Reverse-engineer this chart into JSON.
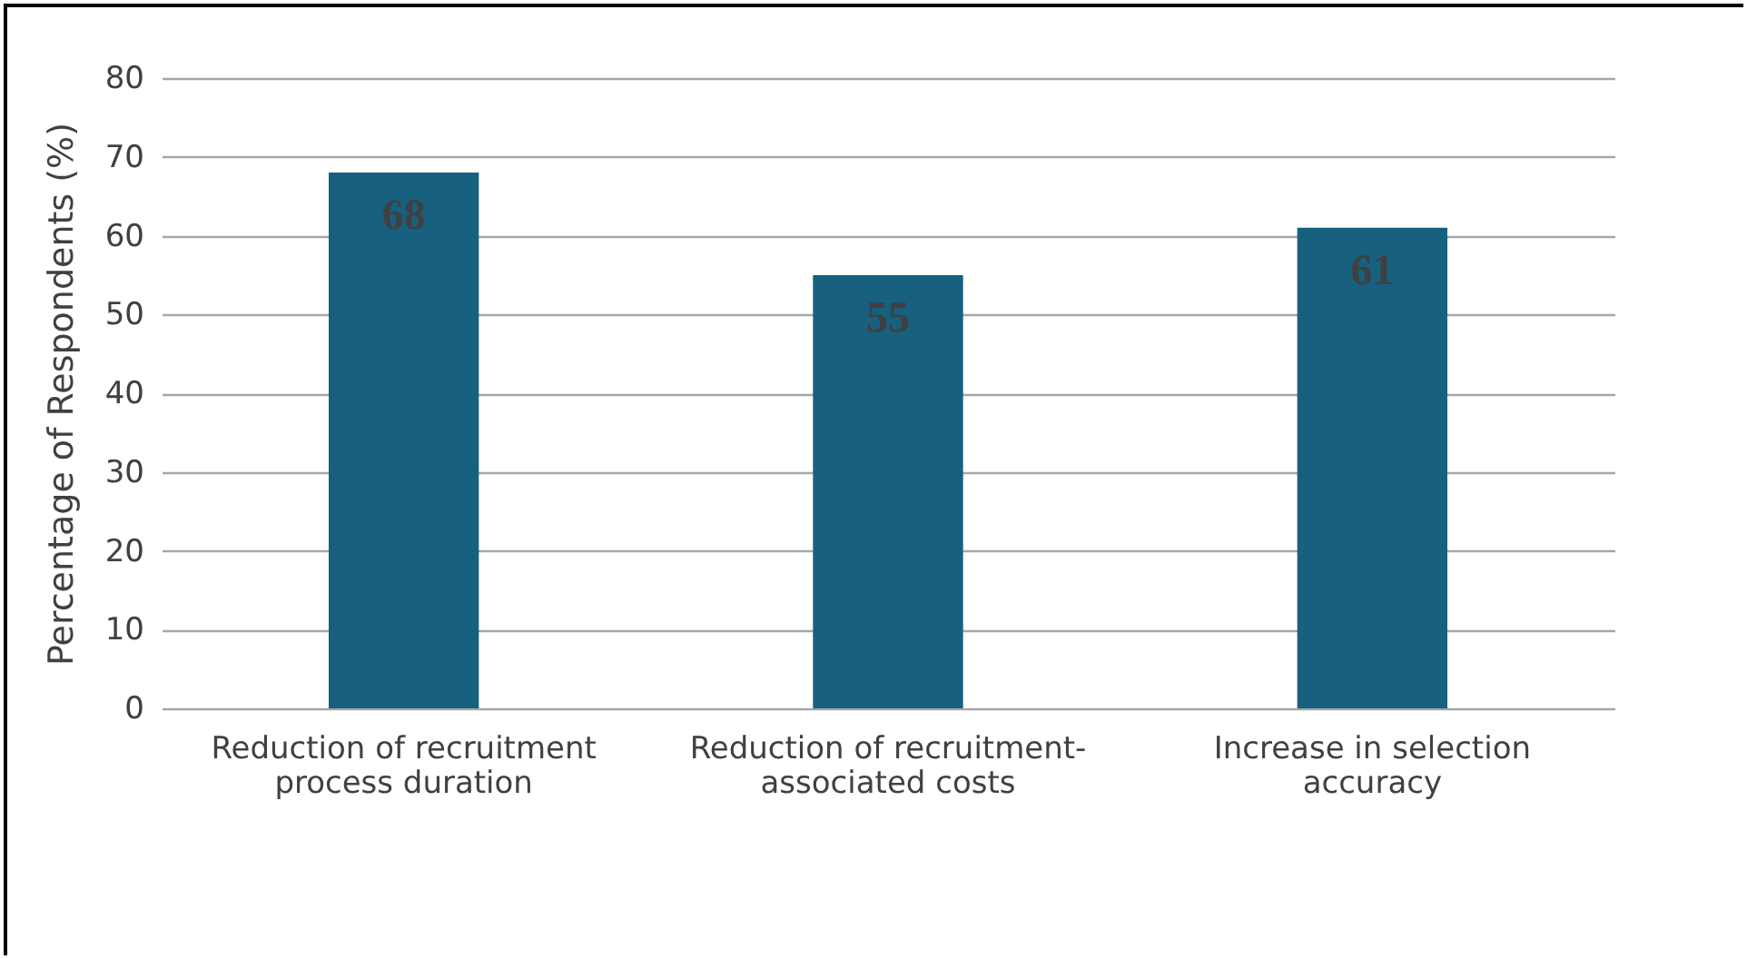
{
  "chart_data": {
    "type": "bar",
    "ylabel": "Percentage of Respondents (%)",
    "categories": [
      "Reduction of recruitment process duration",
      "Reduction of recruitment-associated costs",
      "Increase in selection accuracy"
    ],
    "values": [
      68,
      55,
      61
    ],
    "color": "#17607f",
    "ylim": [
      0,
      80
    ],
    "yticks": [
      0,
      10,
      20,
      30,
      40,
      50,
      60,
      70,
      80
    ],
    "grid": "y",
    "data_labels": true
  }
}
